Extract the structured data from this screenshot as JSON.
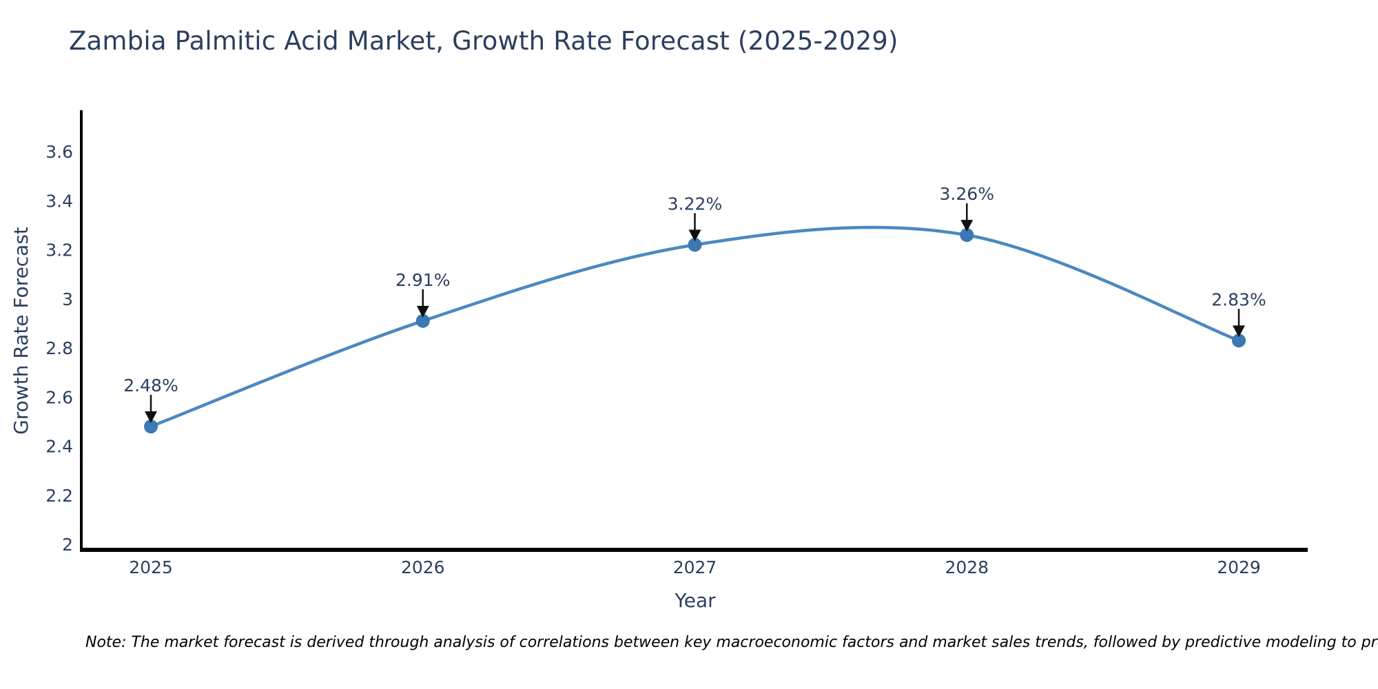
{
  "title": "Zambia Palmitic Acid Market, Growth Rate Forecast (2025-2029)",
  "note": "Note: The market forecast is derived through analysis of correlations between key macroeconomic factors and market sales trends, followed by predictive modeling to project future sales",
  "chart_data": {
    "type": "line",
    "line_shape": "spline",
    "x": [
      2025,
      2026,
      2027,
      2028,
      2029
    ],
    "categories": [
      "2025",
      "2026",
      "2027",
      "2028",
      "2029"
    ],
    "series": [
      {
        "name": "Growth Rate Forecast",
        "values": [
          2.48,
          2.91,
          3.22,
          3.26,
          2.83
        ]
      }
    ],
    "point_labels": [
      "2.48%",
      "2.91%",
      "3.22%",
      "3.26%",
      "2.83%"
    ],
    "title": "Zambia Palmitic Acid Market, Growth Rate Forecast (2025-2029)",
    "xlabel": "Year",
    "ylabel": "Growth Rate Forecast",
    "ylim": [
      2,
      3.6
    ],
    "yticks": [
      2,
      2.2,
      2.4,
      2.6,
      2.8,
      3,
      3.2,
      3.4,
      3.6
    ],
    "grid": false,
    "legend": "none",
    "annotations": "value labels with black down arrows above each point",
    "colors": {
      "line": "#4c88c0",
      "marker": "#3b78b4",
      "text": "#2a3f5f",
      "axis": "#000000",
      "arrow": "#111111",
      "note_text": "#000000",
      "background": "#ffffff"
    }
  }
}
